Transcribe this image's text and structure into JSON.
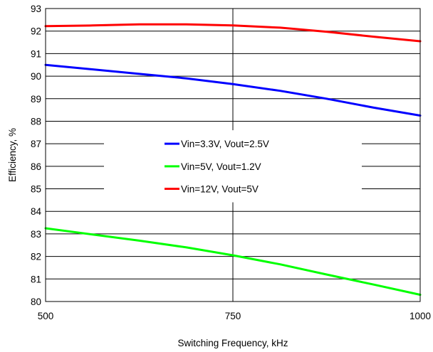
{
  "chart_data": {
    "type": "line",
    "xlabel": "Switching Frequency, kHz",
    "ylabel": "Efficiency, %",
    "xlim": [
      500,
      1000
    ],
    "ylim": [
      80,
      93
    ],
    "x_ticks": [
      500,
      750,
      1000
    ],
    "y_ticks": [
      80,
      81,
      82,
      83,
      84,
      85,
      86,
      87,
      88,
      89,
      90,
      91,
      92,
      93
    ],
    "grid": true,
    "legend_position": "center",
    "series": [
      {
        "name": "Vin=3.3V, Vout=2.5V",
        "color": "#0000ff",
        "x": [
          500,
          625,
          688,
          750,
          813,
          875,
          938,
          1000
        ],
        "y": [
          90.5,
          90.1,
          89.9,
          89.65,
          89.35,
          89.0,
          88.6,
          88.25
        ]
      },
      {
        "name": "Vin=5V, Vout=1.2V",
        "color": "#00ff00",
        "x": [
          500,
          625,
          688,
          750,
          813,
          875,
          938,
          1000
        ],
        "y": [
          83.25,
          82.7,
          82.4,
          82.05,
          81.65,
          81.2,
          80.75,
          80.3
        ]
      },
      {
        "name": "Vin=12V, Vout=5V",
        "color": "#ff0000",
        "x": [
          500,
          563,
          625,
          688,
          750,
          813,
          875,
          938,
          1000
        ],
        "y": [
          92.22,
          92.25,
          92.3,
          92.3,
          92.25,
          92.15,
          91.97,
          91.75,
          91.55
        ]
      }
    ]
  }
}
